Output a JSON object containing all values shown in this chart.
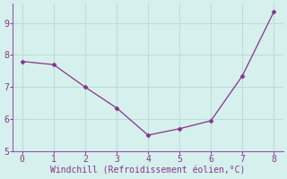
{
  "x": [
    0,
    1,
    2,
    3,
    4,
    5,
    6,
    7,
    8
  ],
  "y": [
    7.8,
    7.7,
    7.0,
    6.35,
    5.5,
    5.7,
    5.95,
    7.35,
    9.35
  ],
  "line_color": "#883388",
  "marker_color": "#883388",
  "background_color": "#d6f0ee",
  "grid_color": "#b8ddd8",
  "spine_color": "#9955aa",
  "xlabel": "Windchill (Refroidissement éolien,°C)",
  "xlabel_color": "#883388",
  "xlabel_fontsize": 7,
  "tick_color": "#883388",
  "tick_fontsize": 7,
  "xlim": [
    -0.3,
    8.3
  ],
  "ylim": [
    5.0,
    9.6
  ],
  "yticks": [
    5,
    6,
    7,
    8,
    9
  ],
  "xticks": [
    0,
    1,
    2,
    3,
    4,
    5,
    6,
    7,
    8
  ]
}
